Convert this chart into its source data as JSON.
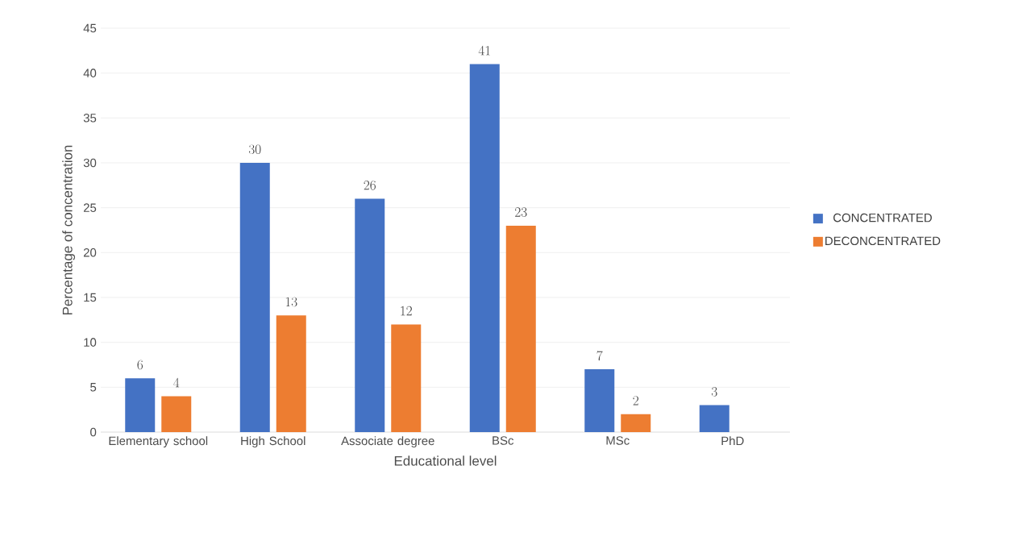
{
  "chart_data": {
    "type": "bar",
    "xlabel": "Educational level",
    "ylabel": "Percentage of concentration",
    "categories": [
      "Elementary school",
      "High School",
      "Associate degree",
      "BSc",
      "MSc",
      "PhD"
    ],
    "series": [
      {
        "name": "CONCENTRATED",
        "color": "#4472c4",
        "values": [
          6,
          30,
          26,
          41,
          7,
          3
        ]
      },
      {
        "name": "DECONCENTRATED",
        "color": "#ed7d31",
        "values": [
          4,
          13,
          12,
          23,
          2,
          null
        ]
      }
    ],
    "ylim": [
      0,
      45
    ],
    "yticks": [
      0,
      5,
      10,
      15,
      20,
      25,
      30,
      35,
      40,
      45
    ],
    "grid": "y",
    "legend": "right",
    "data_labels": true
  }
}
